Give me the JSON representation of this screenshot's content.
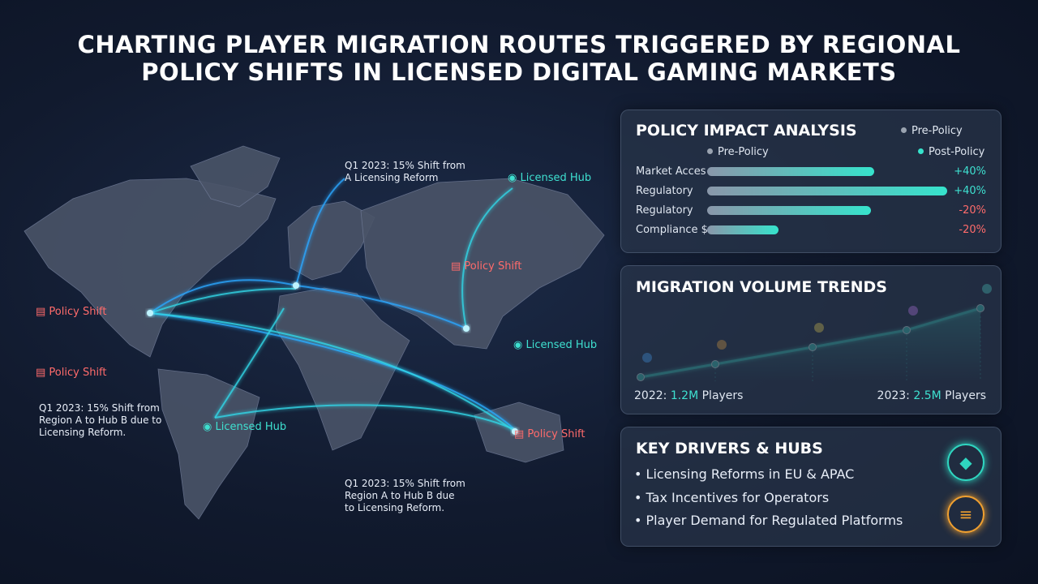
{
  "title_lines": [
    "CHARTING PLAYER MIGRATION ROUTES TRIGGERED BY REGIONAL",
    "POLICY SHIFTS IN LICENSED DIGITAL GAMING MARKETS"
  ],
  "map": {
    "policy_shift_labels": [
      "Policy Shift",
      "Policy Shift",
      "Policy Shift",
      "Policy Shift"
    ],
    "licensed_hub_labels": [
      "Licensed Hub",
      "Licensed Hub",
      "Licensed Hub"
    ],
    "notes": [
      {
        "lines": [
          "Q1 2023: 15% Shift from",
          "A Licensing Reform"
        ]
      },
      {
        "lines": [
          "Q1 2023: 15% Shift from",
          "Region A to Hub B due to",
          "Licensing Reform."
        ]
      },
      {
        "lines": [
          "Q1 2023: 15% Shift from",
          "Region A to Hub B due",
          "to Licensing Reform."
        ]
      }
    ]
  },
  "policy_impact": {
    "title": "POLICY IMPACT ANALYSIS",
    "legend": [
      "Pre-Policy",
      "Pre-Policy",
      "Post-Policy"
    ],
    "rows": [
      {
        "label": "Market Acces",
        "change": "+40%"
      },
      {
        "label": "Regulatory",
        "change": "+40%"
      },
      {
        "label": "Regulatory",
        "change": "-20%"
      },
      {
        "label": "Compliance $",
        "change": "-20%"
      }
    ]
  },
  "migration_trends": {
    "title": "MIGRATION VOLUME TRENDS",
    "start": {
      "year": "2022:",
      "value": "1.2M",
      "unit": "Players"
    },
    "end": {
      "year": "2023:",
      "value": "2.5M",
      "unit": "Players"
    }
  },
  "key_drivers": {
    "title": "KEY DRIVERS & HUBS",
    "items": [
      "Licensing Reforms in EU & APAC",
      "Tax Incentives for Operators",
      "Player Demand for Regulated Platforms"
    ]
  }
}
